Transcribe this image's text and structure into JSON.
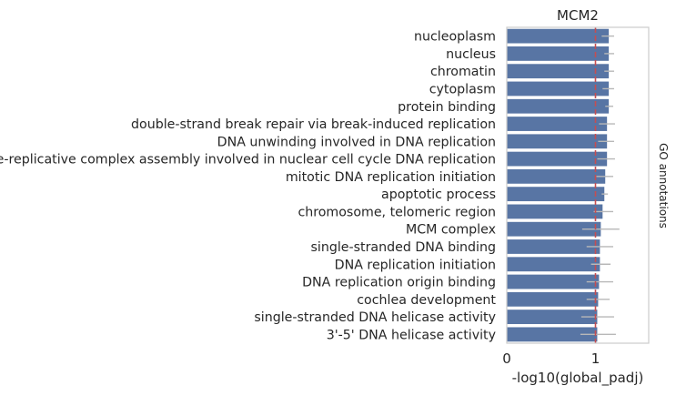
{
  "chart_data": {
    "type": "bar",
    "orientation": "horizontal",
    "title": "MCM2",
    "xlabel": "-log10(global_padj)",
    "ylabel": "",
    "side_label": "GO annotations",
    "xlim": [
      0,
      1.6
    ],
    "xticks": [
      0,
      1
    ],
    "reference_line": 1,
    "grid": false,
    "legend": "none",
    "colors": {
      "bar": "#5875a4",
      "reference": "#c44e52",
      "error": "#b8b8b8",
      "frame": "#cccccc"
    },
    "categories": [
      "nucleoplasm",
      "nucleus",
      "chromatin",
      "cytoplasm",
      "protein binding",
      "double-strand break repair via break-induced replication",
      "DNA unwinding involved in DNA replication",
      "pre-replicative complex assembly involved in nuclear cell cycle DNA replication",
      "mitotic DNA replication initiation",
      "apoptotic process",
      "chromosome, telomeric region",
      "MCM complex",
      "single-stranded DNA binding",
      "DNA replication initiation",
      "DNA replication origin binding",
      "cochlea development",
      "single-stranded DNA helicase activity",
      "3'-5' DNA helicase activity"
    ],
    "values": [
      1.15,
      1.15,
      1.15,
      1.15,
      1.15,
      1.13,
      1.13,
      1.13,
      1.11,
      1.1,
      1.08,
      1.06,
      1.05,
      1.05,
      1.04,
      1.03,
      1.02,
      1.02
    ],
    "error_low": [
      1.07,
      1.1,
      1.1,
      1.08,
      1.11,
      1.04,
      1.03,
      1.02,
      1.01,
      1.07,
      0.98,
      0.85,
      0.9,
      0.95,
      0.9,
      0.9,
      0.84,
      0.83
    ],
    "error_high": [
      1.21,
      1.21,
      1.21,
      1.21,
      1.2,
      1.22,
      1.21,
      1.22,
      1.2,
      1.14,
      1.2,
      1.27,
      1.2,
      1.17,
      1.2,
      1.16,
      1.21,
      1.23
    ]
  }
}
